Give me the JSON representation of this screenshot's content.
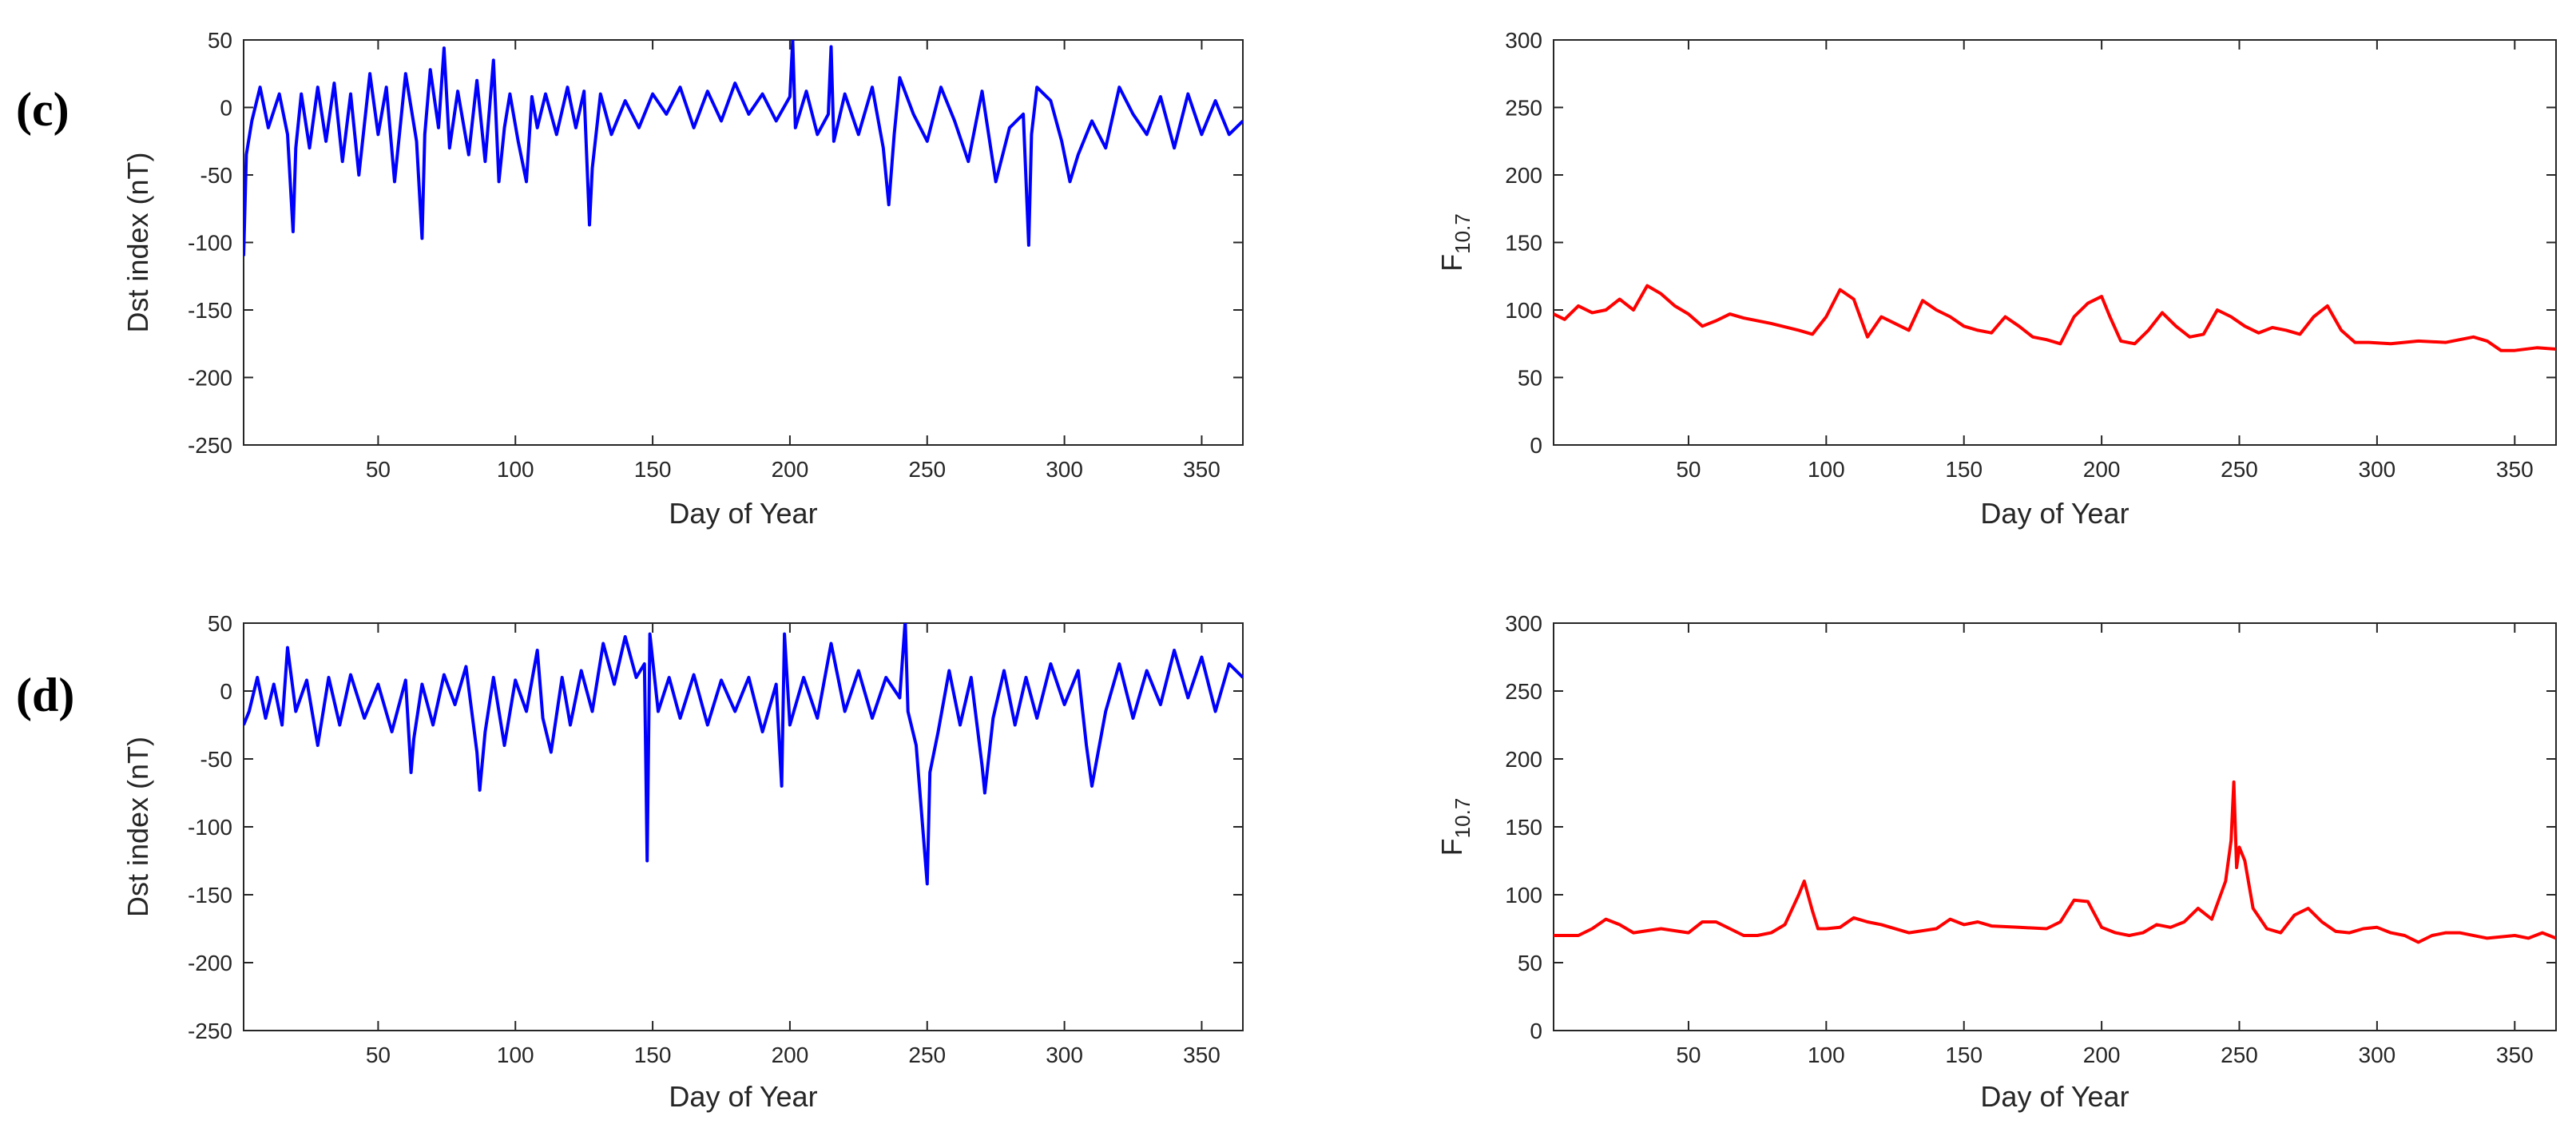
{
  "chart_data": [
    {
      "panel": "(c)",
      "type": "line",
      "xlabel": "Day of Year",
      "ylabel": "Dst index (nT)",
      "xlim": [
        1,
        365
      ],
      "ylim": [
        -250,
        50
      ],
      "xticks": [
        50,
        100,
        150,
        200,
        250,
        300,
        350
      ],
      "yticks": [
        -250,
        -200,
        -150,
        -100,
        -50,
        0,
        50
      ],
      "color": "#0000ff",
      "series": [
        {
          "name": "Dst",
          "x": [
            1,
            2,
            4,
            7,
            10,
            14,
            17,
            19,
            20,
            22,
            25,
            28,
            31,
            34,
            37,
            40,
            43,
            47,
            50,
            53,
            56,
            60,
            64,
            66,
            67,
            69,
            72,
            74,
            76,
            79,
            83,
            86,
            89,
            92,
            94,
            96,
            98,
            101,
            104,
            106,
            108,
            111,
            115,
            119,
            122,
            125,
            127,
            128,
            131,
            135,
            140,
            145,
            150,
            155,
            160,
            165,
            170,
            175,
            180,
            185,
            190,
            195,
            200,
            201,
            202,
            206,
            210,
            214,
            215,
            216,
            220,
            225,
            230,
            234,
            236,
            238,
            240,
            245,
            250,
            255,
            260,
            265,
            270,
            275,
            280,
            285,
            287,
            288,
            290,
            295,
            299,
            302,
            305,
            310,
            315,
            320,
            325,
            330,
            335,
            340,
            345,
            350,
            355,
            360,
            365
          ],
          "y": [
            -110,
            -35,
            -10,
            15,
            -15,
            10,
            -20,
            -92,
            -30,
            10,
            -30,
            15,
            -25,
            18,
            -40,
            10,
            -50,
            25,
            -20,
            15,
            -55,
            25,
            -25,
            -97,
            -20,
            28,
            -15,
            44,
            -30,
            12,
            -35,
            20,
            -40,
            35,
            -55,
            -15,
            10,
            -25,
            -55,
            8,
            -15,
            10,
            -20,
            15,
            -15,
            12,
            -87,
            -45,
            10,
            -20,
            5,
            -15,
            10,
            -5,
            15,
            -15,
            12,
            -10,
            18,
            -5,
            10,
            -10,
            8,
            50,
            -15,
            12,
            -20,
            -5,
            45,
            -25,
            10,
            -20,
            15,
            -30,
            -72,
            -20,
            22,
            -5,
            -25,
            15,
            -10,
            -40,
            12,
            -55,
            -15,
            -5,
            -102,
            -20,
            15,
            5,
            -25,
            -55,
            -35,
            -10,
            -30,
            15,
            -5,
            -20,
            8,
            -30,
            10,
            -20,
            5,
            -20,
            -10
          ]
        }
      ]
    },
    {
      "panel": "(c)",
      "type": "line",
      "xlabel": "Day of Year",
      "ylabel": "F10.7",
      "xlim": [
        1,
        365
      ],
      "ylim": [
        0,
        300
      ],
      "xticks": [
        50,
        100,
        150,
        200,
        250,
        300,
        350
      ],
      "yticks": [
        0,
        50,
        100,
        150,
        200,
        250,
        300
      ],
      "color": "#ff0000",
      "series": [
        {
          "name": "F10.7",
          "x": [
            1,
            5,
            10,
            15,
            20,
            25,
            30,
            35,
            40,
            45,
            50,
            55,
            60,
            65,
            70,
            80,
            90,
            95,
            100,
            105,
            110,
            115,
            120,
            125,
            130,
            135,
            140,
            145,
            150,
            155,
            160,
            165,
            170,
            175,
            180,
            185,
            190,
            195,
            200,
            203,
            207,
            212,
            217,
            222,
            227,
            232,
            237,
            242,
            247,
            252,
            257,
            262,
            267,
            272,
            277,
            282,
            287,
            292,
            297,
            305,
            315,
            325,
            335,
            340,
            345,
            350,
            358,
            365
          ],
          "y": [
            97,
            93,
            103,
            98,
            100,
            108,
            100,
            118,
            112,
            103,
            97,
            88,
            92,
            97,
            94,
            90,
            85,
            82,
            95,
            115,
            108,
            80,
            95,
            90,
            85,
            107,
            100,
            95,
            88,
            85,
            83,
            95,
            88,
            80,
            78,
            75,
            95,
            105,
            110,
            95,
            77,
            75,
            85,
            98,
            88,
            80,
            82,
            100,
            95,
            88,
            83,
            87,
            85,
            82,
            95,
            103,
            85,
            76,
            76,
            75,
            77,
            76,
            80,
            77,
            70,
            70,
            72,
            71
          ]
        }
      ]
    },
    {
      "panel": "(d)",
      "type": "line",
      "xlabel": "Day of Year",
      "ylabel": "Dst index (nT)",
      "xlim": [
        1,
        365
      ],
      "ylim": [
        -250,
        50
      ],
      "xticks": [
        50,
        100,
        150,
        200,
        250,
        300,
        350
      ],
      "yticks": [
        -250,
        -200,
        -150,
        -100,
        -50,
        0,
        50
      ],
      "color": "#0000ff",
      "series": [
        {
          "name": "Dst",
          "x": [
            1,
            3,
            6,
            9,
            12,
            15,
            17,
            20,
            24,
            28,
            32,
            36,
            40,
            45,
            50,
            55,
            60,
            62,
            63,
            66,
            70,
            74,
            78,
            82,
            86,
            87,
            89,
            92,
            96,
            100,
            104,
            108,
            110,
            113,
            117,
            120,
            124,
            128,
            132,
            136,
            140,
            144,
            147,
            148,
            149,
            152,
            156,
            160,
            165,
            170,
            175,
            180,
            185,
            190,
            195,
            197,
            198,
            200,
            205,
            210,
            215,
            220,
            225,
            230,
            235,
            240,
            242,
            243,
            246,
            250,
            251,
            254,
            258,
            262,
            266,
            270,
            271,
            274,
            278,
            282,
            286,
            290,
            295,
            300,
            305,
            308,
            310,
            315,
            320,
            325,
            330,
            335,
            340,
            345,
            350,
            355,
            360,
            365
          ],
          "y": [
            -25,
            -15,
            10,
            -20,
            5,
            -25,
            32,
            -15,
            8,
            -40,
            10,
            -25,
            12,
            -20,
            5,
            -30,
            8,
            -60,
            -35,
            5,
            -25,
            12,
            -10,
            18,
            -45,
            -73,
            -30,
            10,
            -40,
            8,
            -15,
            30,
            -20,
            -45,
            10,
            -25,
            15,
            -15,
            35,
            5,
            40,
            10,
            20,
            -125,
            42,
            -15,
            10,
            -20,
            12,
            -25,
            8,
            -15,
            10,
            -30,
            5,
            -70,
            42,
            -25,
            10,
            -20,
            35,
            -15,
            15,
            -20,
            10,
            -5,
            52,
            -15,
            -40,
            -142,
            -60,
            -30,
            15,
            -25,
            10,
            -55,
            -75,
            -20,
            15,
            -25,
            10,
            -20,
            20,
            -10,
            15,
            -40,
            -70,
            -15,
            20,
            -20,
            15,
            -10,
            30,
            -5,
            25,
            -15,
            20,
            10
          ]
        }
      ]
    },
    {
      "panel": "(d)",
      "type": "line",
      "xlabel": "Day of Year",
      "ylabel": "F10.7",
      "xlim": [
        1,
        365
      ],
      "ylim": [
        0,
        300
      ],
      "xticks": [
        50,
        100,
        150,
        200,
        250,
        300,
        350
      ],
      "yticks": [
        0,
        50,
        100,
        150,
        200,
        250,
        300
      ],
      "color": "#ff0000",
      "series": [
        {
          "name": "F10.7",
          "x": [
            1,
            10,
            15,
            20,
            25,
            30,
            40,
            50,
            55,
            60,
            65,
            70,
            75,
            80,
            85,
            90,
            92,
            95,
            97,
            100,
            105,
            110,
            115,
            120,
            130,
            140,
            145,
            150,
            155,
            160,
            170,
            180,
            185,
            190,
            195,
            200,
            205,
            210,
            215,
            220,
            225,
            230,
            235,
            240,
            245,
            247,
            248,
            249,
            250,
            252,
            255,
            260,
            265,
            270,
            275,
            280,
            285,
            290,
            295,
            300,
            305,
            310,
            315,
            320,
            325,
            330,
            340,
            350,
            355,
            360,
            365
          ],
          "y": [
            70,
            70,
            75,
            82,
            78,
            72,
            75,
            72,
            80,
            80,
            75,
            70,
            70,
            72,
            78,
            100,
            110,
            88,
            75,
            75,
            76,
            83,
            80,
            78,
            72,
            75,
            82,
            78,
            80,
            77,
            76,
            75,
            80,
            96,
            95,
            76,
            72,
            70,
            72,
            78,
            76,
            80,
            90,
            82,
            110,
            140,
            183,
            120,
            135,
            125,
            90,
            75,
            72,
            85,
            90,
            80,
            73,
            72,
            75,
            76,
            72,
            70,
            65,
            70,
            72,
            72,
            68,
            70,
            68,
            72,
            68
          ]
        }
      ]
    }
  ],
  "panel_labels": {
    "c": "(c)",
    "d": "(d)"
  },
  "ylabel_f107": {
    "base": "F",
    "subscript": "10.7"
  }
}
